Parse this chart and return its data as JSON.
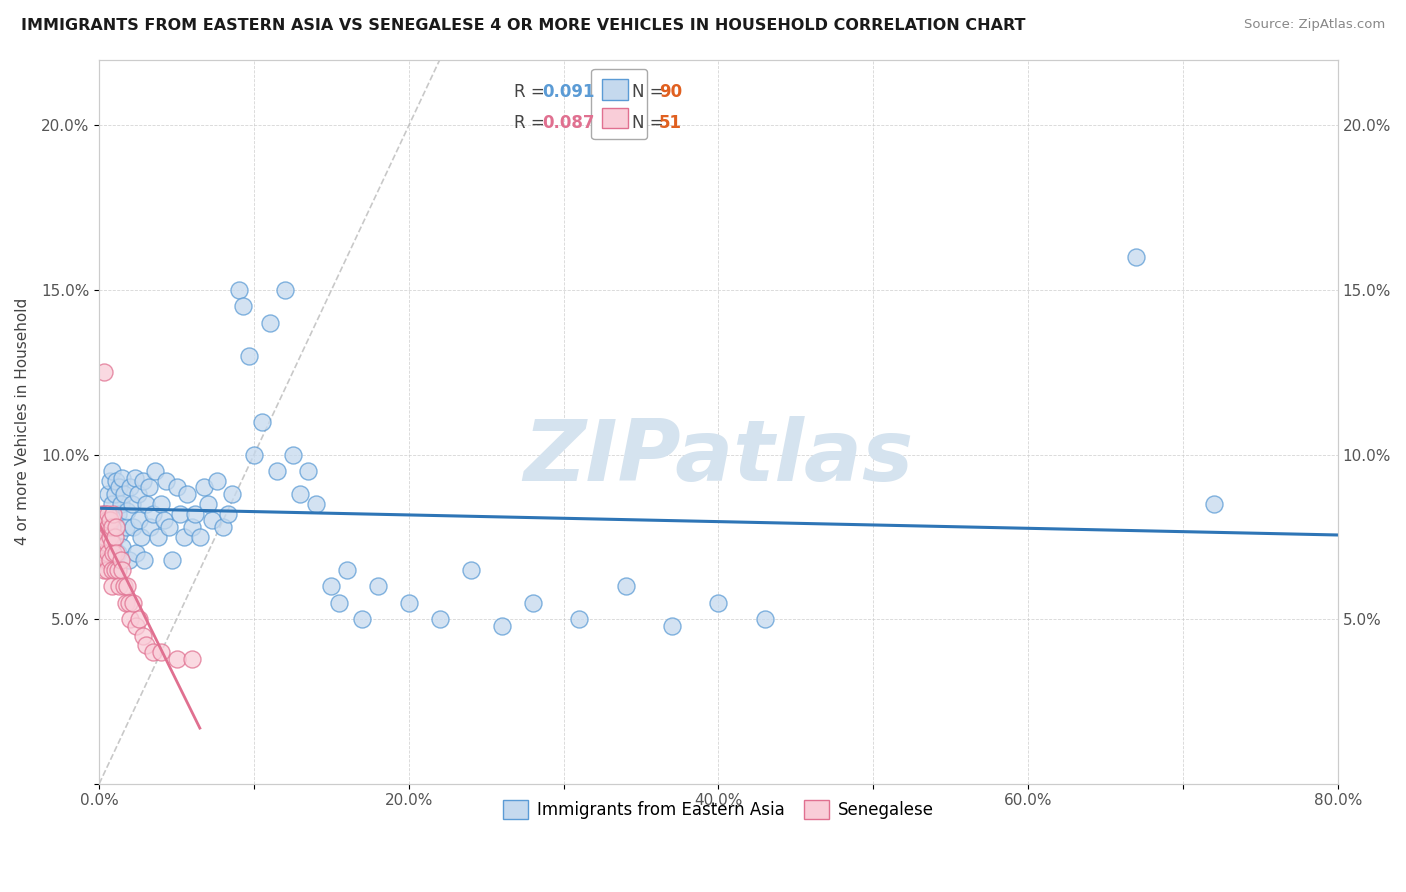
{
  "title": "IMMIGRANTS FROM EASTERN ASIA VS SENEGALESE 4 OR MORE VEHICLES IN HOUSEHOLD CORRELATION CHART",
  "source": "Source: ZipAtlas.com",
  "ylabel": "4 or more Vehicles in Household",
  "xlim": [
    0.0,
    0.8
  ],
  "ylim": [
    0.0,
    0.22
  ],
  "xticks": [
    0.0,
    0.1,
    0.2,
    0.3,
    0.4,
    0.5,
    0.6,
    0.7,
    0.8
  ],
  "yticks": [
    0.0,
    0.05,
    0.1,
    0.15,
    0.2
  ],
  "xticklabels": [
    "0.0%",
    "",
    "20.0%",
    "",
    "40.0%",
    "",
    "60.0%",
    "",
    "80.0%"
  ],
  "yticklabels": [
    "",
    "5.0%",
    "10.0%",
    "15.0%",
    "20.0%"
  ],
  "r_blue": "0.091",
  "n_blue": "90",
  "r_pink": "0.087",
  "n_pink": "51",
  "blue_face": "#c5d9ee",
  "blue_edge": "#5b9bd5",
  "pink_face": "#f9cdd8",
  "pink_edge": "#e07090",
  "blue_line_color": "#2e75b6",
  "pink_line_color": "#e07090",
  "diag_color": "#bbbbbb",
  "watermark_color": "#d5e3ef",
  "blue_scatter_x": [
    0.004,
    0.005,
    0.006,
    0.006,
    0.007,
    0.007,
    0.008,
    0.008,
    0.008,
    0.009,
    0.009,
    0.01,
    0.01,
    0.011,
    0.011,
    0.012,
    0.012,
    0.013,
    0.013,
    0.014,
    0.015,
    0.015,
    0.016,
    0.017,
    0.018,
    0.019,
    0.02,
    0.021,
    0.022,
    0.023,
    0.024,
    0.025,
    0.026,
    0.027,
    0.028,
    0.029,
    0.03,
    0.032,
    0.033,
    0.035,
    0.036,
    0.038,
    0.04,
    0.042,
    0.043,
    0.045,
    0.047,
    0.05,
    0.052,
    0.055,
    0.057,
    0.06,
    0.062,
    0.065,
    0.068,
    0.07,
    0.073,
    0.076,
    0.08,
    0.083,
    0.086,
    0.09,
    0.093,
    0.097,
    0.1,
    0.105,
    0.11,
    0.115,
    0.12,
    0.125,
    0.13,
    0.135,
    0.14,
    0.15,
    0.155,
    0.16,
    0.17,
    0.18,
    0.2,
    0.22,
    0.24,
    0.26,
    0.28,
    0.31,
    0.34,
    0.37,
    0.4,
    0.43,
    0.67,
    0.72
  ],
  "blue_scatter_y": [
    0.082,
    0.075,
    0.088,
    0.07,
    0.079,
    0.092,
    0.068,
    0.085,
    0.095,
    0.073,
    0.08,
    0.088,
    0.065,
    0.092,
    0.078,
    0.082,
    0.07,
    0.09,
    0.076,
    0.085,
    0.093,
    0.072,
    0.088,
    0.078,
    0.083,
    0.068,
    0.09,
    0.085,
    0.078,
    0.093,
    0.07,
    0.088,
    0.08,
    0.075,
    0.092,
    0.068,
    0.085,
    0.09,
    0.078,
    0.082,
    0.095,
    0.075,
    0.085,
    0.08,
    0.092,
    0.078,
    0.068,
    0.09,
    0.082,
    0.075,
    0.088,
    0.078,
    0.082,
    0.075,
    0.09,
    0.085,
    0.08,
    0.092,
    0.078,
    0.082,
    0.088,
    0.15,
    0.145,
    0.13,
    0.1,
    0.11,
    0.14,
    0.095,
    0.15,
    0.1,
    0.088,
    0.095,
    0.085,
    0.06,
    0.055,
    0.065,
    0.05,
    0.06,
    0.055,
    0.05,
    0.065,
    0.048,
    0.055,
    0.05,
    0.06,
    0.048,
    0.055,
    0.05,
    0.16,
    0.085
  ],
  "pink_scatter_x": [
    0.001,
    0.001,
    0.002,
    0.002,
    0.002,
    0.003,
    0.003,
    0.003,
    0.003,
    0.004,
    0.004,
    0.004,
    0.005,
    0.005,
    0.005,
    0.005,
    0.006,
    0.006,
    0.006,
    0.007,
    0.007,
    0.007,
    0.008,
    0.008,
    0.008,
    0.008,
    0.009,
    0.009,
    0.01,
    0.01,
    0.011,
    0.011,
    0.012,
    0.013,
    0.014,
    0.015,
    0.016,
    0.017,
    0.018,
    0.019,
    0.02,
    0.022,
    0.024,
    0.026,
    0.028,
    0.03,
    0.035,
    0.04,
    0.05,
    0.06,
    0.003
  ],
  "pink_scatter_y": [
    0.078,
    0.07,
    0.082,
    0.068,
    0.075,
    0.08,
    0.073,
    0.065,
    0.078,
    0.082,
    0.07,
    0.075,
    0.068,
    0.08,
    0.073,
    0.065,
    0.078,
    0.082,
    0.07,
    0.075,
    0.068,
    0.08,
    0.073,
    0.065,
    0.078,
    0.06,
    0.082,
    0.07,
    0.075,
    0.065,
    0.078,
    0.07,
    0.065,
    0.06,
    0.068,
    0.065,
    0.06,
    0.055,
    0.06,
    0.055,
    0.05,
    0.055,
    0.048,
    0.05,
    0.045,
    0.042,
    0.04,
    0.04,
    0.038,
    0.038,
    0.125
  ]
}
